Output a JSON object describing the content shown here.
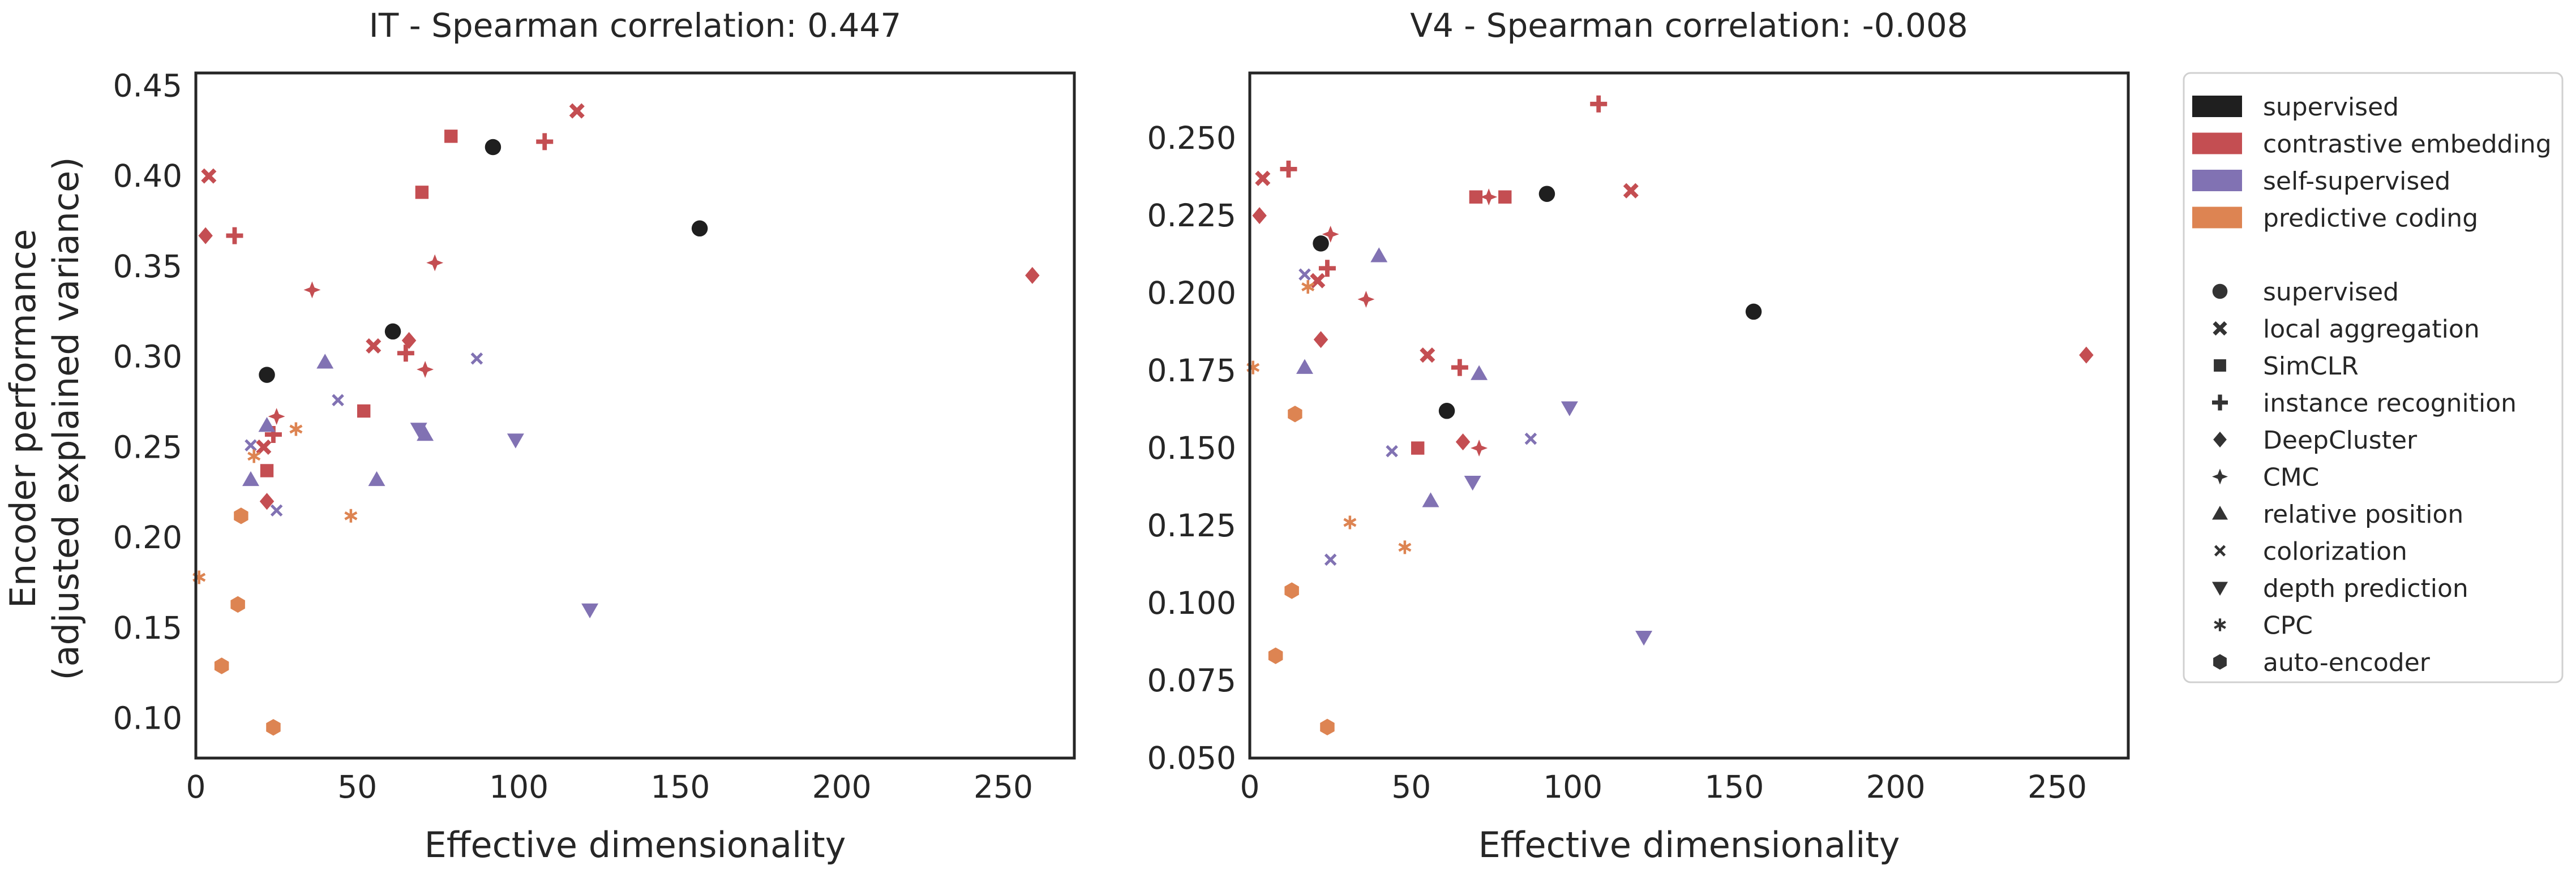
{
  "figure": {
    "ylabel_line1": "Encoder performance",
    "ylabel_line2": "(adjusted explained variance)",
    "xlabel": "Effective dimensionality"
  },
  "colors": {
    "supervised": "#1f1f1f",
    "contrastive embedding": "#c44e52",
    "self-supervised": "#8172b3",
    "predictive coding": "#dd8452"
  },
  "legend": {
    "categories": [
      {
        "label": "supervised",
        "color_key": "supervised"
      },
      {
        "label": "contrastive embedding",
        "color_key": "contrastive embedding"
      },
      {
        "label": "self-supervised",
        "color_key": "self-supervised"
      },
      {
        "label": "predictive coding",
        "color_key": "predictive coding"
      }
    ],
    "markers": [
      {
        "label": "supervised",
        "marker": "circle"
      },
      {
        "label": "local aggregation",
        "marker": "x"
      },
      {
        "label": "SimCLR",
        "marker": "square"
      },
      {
        "label": "instance recognition",
        "marker": "plus"
      },
      {
        "label": "DeepCluster",
        "marker": "diamond"
      },
      {
        "label": "CMC",
        "marker": "star4"
      },
      {
        "label": "relative position",
        "marker": "triangle-up"
      },
      {
        "label": "colorization",
        "marker": "x-thin"
      },
      {
        "label": "depth prediction",
        "marker": "triangle-down"
      },
      {
        "label": "CPC",
        "marker": "asterisk"
      },
      {
        "label": "auto-encoder",
        "marker": "hexagon"
      }
    ]
  },
  "chart_data": [
    {
      "type": "scatter",
      "title": "IT - Spearman correlation: 0.447",
      "xlabel": "Effective dimensionality",
      "ylabel": "Encoder performance (adjusted explained variance)",
      "xlim": [
        0,
        272
      ],
      "ylim": [
        0.078,
        0.457
      ],
      "xticks": [
        0,
        50,
        100,
        150,
        200,
        250
      ],
      "yticks": [
        0.1,
        0.15,
        0.2,
        0.25,
        0.3,
        0.35,
        0.4,
        0.45
      ],
      "ytick_labels": [
        "0.10",
        "0.15",
        "0.20",
        "0.25",
        "0.30",
        "0.35",
        "0.40",
        "0.45"
      ],
      "grid": false,
      "points": [
        {
          "x": 92,
          "y": 0.416,
          "cat": "supervised",
          "marker": "circle"
        },
        {
          "x": 156,
          "y": 0.371,
          "cat": "supervised",
          "marker": "circle"
        },
        {
          "x": 61,
          "y": 0.314,
          "cat": "supervised",
          "marker": "circle"
        },
        {
          "x": 22,
          "y": 0.29,
          "cat": "supervised",
          "marker": "circle"
        },
        {
          "x": 4,
          "y": 0.4,
          "cat": "contrastive embedding",
          "marker": "x"
        },
        {
          "x": 118,
          "y": 0.436,
          "cat": "contrastive embedding",
          "marker": "x"
        },
        {
          "x": 55,
          "y": 0.306,
          "cat": "contrastive embedding",
          "marker": "x"
        },
        {
          "x": 21,
          "y": 0.25,
          "cat": "contrastive embedding",
          "marker": "x"
        },
        {
          "x": 79,
          "y": 0.422,
          "cat": "contrastive embedding",
          "marker": "square"
        },
        {
          "x": 70,
          "y": 0.391,
          "cat": "contrastive embedding",
          "marker": "square"
        },
        {
          "x": 52,
          "y": 0.27,
          "cat": "contrastive embedding",
          "marker": "square"
        },
        {
          "x": 22,
          "y": 0.237,
          "cat": "contrastive embedding",
          "marker": "square"
        },
        {
          "x": 108,
          "y": 0.419,
          "cat": "contrastive embedding",
          "marker": "plus"
        },
        {
          "x": 12,
          "y": 0.367,
          "cat": "contrastive embedding",
          "marker": "plus"
        },
        {
          "x": 65,
          "y": 0.302,
          "cat": "contrastive embedding",
          "marker": "plus"
        },
        {
          "x": 24,
          "y": 0.257,
          "cat": "contrastive embedding",
          "marker": "plus"
        },
        {
          "x": 3,
          "y": 0.367,
          "cat": "contrastive embedding",
          "marker": "diamond"
        },
        {
          "x": 66,
          "y": 0.309,
          "cat": "contrastive embedding",
          "marker": "diamond"
        },
        {
          "x": 22,
          "y": 0.22,
          "cat": "contrastive embedding",
          "marker": "diamond"
        },
        {
          "x": 259,
          "y": 0.345,
          "cat": "contrastive embedding",
          "marker": "diamond"
        },
        {
          "x": 36,
          "y": 0.337,
          "cat": "contrastive embedding",
          "marker": "star4"
        },
        {
          "x": 74,
          "y": 0.352,
          "cat": "contrastive embedding",
          "marker": "star4"
        },
        {
          "x": 71,
          "y": 0.293,
          "cat": "contrastive embedding",
          "marker": "star4"
        },
        {
          "x": 25,
          "y": 0.267,
          "cat": "contrastive embedding",
          "marker": "star4"
        },
        {
          "x": 40,
          "y": 0.297,
          "cat": "self-supervised",
          "marker": "triangle-up"
        },
        {
          "x": 17,
          "y": 0.232,
          "cat": "self-supervised",
          "marker": "triangle-up"
        },
        {
          "x": 56,
          "y": 0.232,
          "cat": "self-supervised",
          "marker": "triangle-up"
        },
        {
          "x": 71,
          "y": 0.257,
          "cat": "self-supervised",
          "marker": "triangle-up"
        },
        {
          "x": 22,
          "y": 0.262,
          "cat": "self-supervised",
          "marker": "triangle-up"
        },
        {
          "x": 17,
          "y": 0.251,
          "cat": "self-supervised",
          "marker": "x-thin"
        },
        {
          "x": 44,
          "y": 0.276,
          "cat": "self-supervised",
          "marker": "x-thin"
        },
        {
          "x": 87,
          "y": 0.299,
          "cat": "self-supervised",
          "marker": "x-thin"
        },
        {
          "x": 25,
          "y": 0.215,
          "cat": "self-supervised",
          "marker": "x-thin"
        },
        {
          "x": 99,
          "y": 0.254,
          "cat": "self-supervised",
          "marker": "triangle-down"
        },
        {
          "x": 69,
          "y": 0.26,
          "cat": "self-supervised",
          "marker": "triangle-down"
        },
        {
          "x": 122,
          "y": 0.16,
          "cat": "self-supervised",
          "marker": "triangle-down"
        },
        {
          "x": 31,
          "y": 0.26,
          "cat": "predictive coding",
          "marker": "asterisk"
        },
        {
          "x": 1,
          "y": 0.178,
          "cat": "predictive coding",
          "marker": "asterisk"
        },
        {
          "x": 48,
          "y": 0.212,
          "cat": "predictive coding",
          "marker": "asterisk"
        },
        {
          "x": 18,
          "y": 0.245,
          "cat": "predictive coding",
          "marker": "asterisk"
        },
        {
          "x": 14,
          "y": 0.212,
          "cat": "predictive coding",
          "marker": "hexagon"
        },
        {
          "x": 13,
          "y": 0.163,
          "cat": "predictive coding",
          "marker": "hexagon"
        },
        {
          "x": 8,
          "y": 0.129,
          "cat": "predictive coding",
          "marker": "hexagon"
        },
        {
          "x": 24,
          "y": 0.095,
          "cat": "predictive coding",
          "marker": "hexagon"
        }
      ]
    },
    {
      "type": "scatter",
      "title": "V4 - Spearman correlation: -0.008",
      "xlabel": "Effective dimensionality",
      "ylabel": "",
      "xlim": [
        0,
        272
      ],
      "ylim": [
        0.05,
        0.271
      ],
      "xticks": [
        0,
        50,
        100,
        150,
        200,
        250
      ],
      "yticks": [
        0.05,
        0.075,
        0.1,
        0.125,
        0.15,
        0.175,
        0.2,
        0.225,
        0.25
      ],
      "ytick_labels": [
        "0.050",
        "0.075",
        "0.100",
        "0.125",
        "0.150",
        "0.175",
        "0.200",
        "0.225",
        "0.250"
      ],
      "grid": false,
      "points": [
        {
          "x": 92,
          "y": 0.232,
          "cat": "supervised",
          "marker": "circle"
        },
        {
          "x": 156,
          "y": 0.194,
          "cat": "supervised",
          "marker": "circle"
        },
        {
          "x": 61,
          "y": 0.162,
          "cat": "supervised",
          "marker": "circle"
        },
        {
          "x": 22,
          "y": 0.216,
          "cat": "supervised",
          "marker": "circle"
        },
        {
          "x": 4,
          "y": 0.237,
          "cat": "contrastive embedding",
          "marker": "x"
        },
        {
          "x": 118,
          "y": 0.233,
          "cat": "contrastive embedding",
          "marker": "x"
        },
        {
          "x": 55,
          "y": 0.18,
          "cat": "contrastive embedding",
          "marker": "x"
        },
        {
          "x": 21,
          "y": 0.204,
          "cat": "contrastive embedding",
          "marker": "x"
        },
        {
          "x": 70,
          "y": 0.231,
          "cat": "contrastive embedding",
          "marker": "square"
        },
        {
          "x": 79,
          "y": 0.231,
          "cat": "contrastive embedding",
          "marker": "square"
        },
        {
          "x": 52,
          "y": 0.15,
          "cat": "contrastive embedding",
          "marker": "square"
        },
        {
          "x": 108,
          "y": 0.261,
          "cat": "contrastive embedding",
          "marker": "plus"
        },
        {
          "x": 12,
          "y": 0.24,
          "cat": "contrastive embedding",
          "marker": "plus"
        },
        {
          "x": 65,
          "y": 0.176,
          "cat": "contrastive embedding",
          "marker": "plus"
        },
        {
          "x": 24,
          "y": 0.208,
          "cat": "contrastive embedding",
          "marker": "plus"
        },
        {
          "x": 3,
          "y": 0.225,
          "cat": "contrastive embedding",
          "marker": "diamond"
        },
        {
          "x": 22,
          "y": 0.185,
          "cat": "contrastive embedding",
          "marker": "diamond"
        },
        {
          "x": 66,
          "y": 0.152,
          "cat": "contrastive embedding",
          "marker": "diamond"
        },
        {
          "x": 259,
          "y": 0.18,
          "cat": "contrastive embedding",
          "marker": "diamond"
        },
        {
          "x": 36,
          "y": 0.198,
          "cat": "contrastive embedding",
          "marker": "star4"
        },
        {
          "x": 74,
          "y": 0.231,
          "cat": "contrastive embedding",
          "marker": "star4"
        },
        {
          "x": 71,
          "y": 0.15,
          "cat": "contrastive embedding",
          "marker": "star4"
        },
        {
          "x": 25,
          "y": 0.219,
          "cat": "contrastive embedding",
          "marker": "star4"
        },
        {
          "x": 40,
          "y": 0.212,
          "cat": "self-supervised",
          "marker": "triangle-up"
        },
        {
          "x": 17,
          "y": 0.176,
          "cat": "self-supervised",
          "marker": "triangle-up"
        },
        {
          "x": 56,
          "y": 0.133,
          "cat": "self-supervised",
          "marker": "triangle-up"
        },
        {
          "x": 71,
          "y": 0.174,
          "cat": "self-supervised",
          "marker": "triangle-up"
        },
        {
          "x": 17,
          "y": 0.206,
          "cat": "self-supervised",
          "marker": "x-thin"
        },
        {
          "x": 44,
          "y": 0.149,
          "cat": "self-supervised",
          "marker": "x-thin"
        },
        {
          "x": 87,
          "y": 0.153,
          "cat": "self-supervised",
          "marker": "x-thin"
        },
        {
          "x": 25,
          "y": 0.114,
          "cat": "self-supervised",
          "marker": "x-thin"
        },
        {
          "x": 99,
          "y": 0.163,
          "cat": "self-supervised",
          "marker": "triangle-down"
        },
        {
          "x": 69,
          "y": 0.139,
          "cat": "self-supervised",
          "marker": "triangle-down"
        },
        {
          "x": 122,
          "y": 0.089,
          "cat": "self-supervised",
          "marker": "triangle-down"
        },
        {
          "x": 31,
          "y": 0.126,
          "cat": "predictive coding",
          "marker": "asterisk"
        },
        {
          "x": 1,
          "y": 0.176,
          "cat": "predictive coding",
          "marker": "asterisk"
        },
        {
          "x": 48,
          "y": 0.118,
          "cat": "predictive coding",
          "marker": "asterisk"
        },
        {
          "x": 18,
          "y": 0.202,
          "cat": "predictive coding",
          "marker": "asterisk"
        },
        {
          "x": 14,
          "y": 0.161,
          "cat": "predictive coding",
          "marker": "hexagon"
        },
        {
          "x": 13,
          "y": 0.104,
          "cat": "predictive coding",
          "marker": "hexagon"
        },
        {
          "x": 8,
          "y": 0.083,
          "cat": "predictive coding",
          "marker": "hexagon"
        },
        {
          "x": 24,
          "y": 0.06,
          "cat": "predictive coding",
          "marker": "hexagon"
        }
      ]
    }
  ]
}
